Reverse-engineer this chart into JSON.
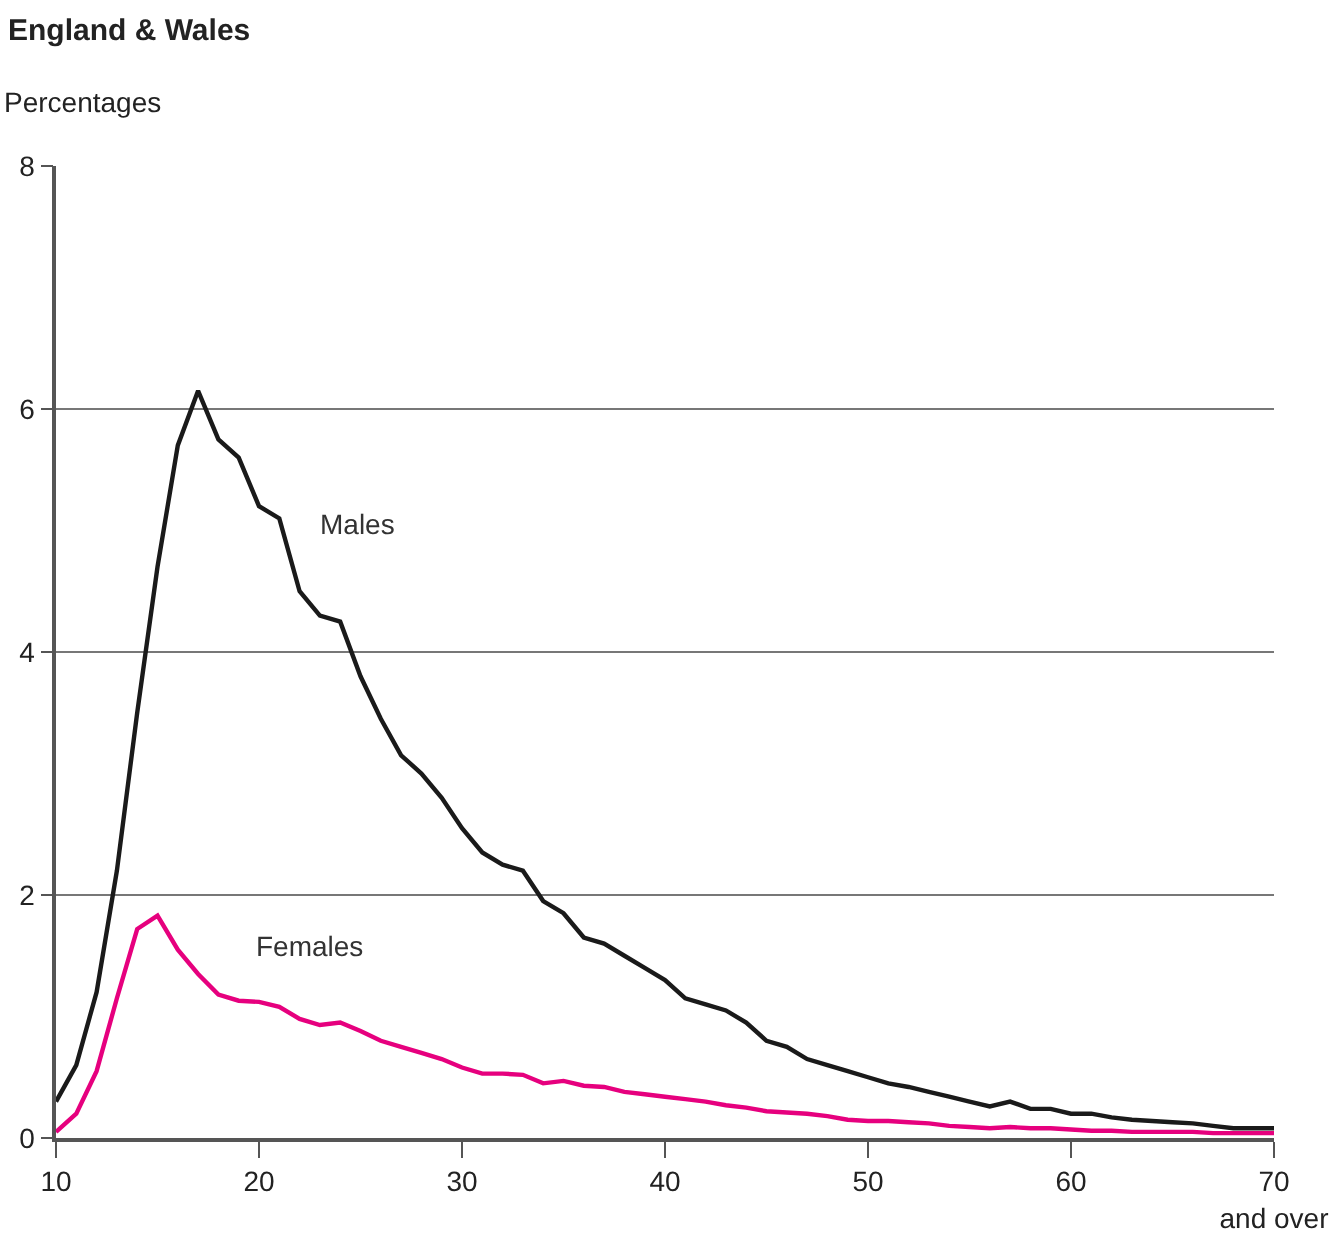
{
  "chart_data": {
    "type": "line",
    "title": "England & Wales",
    "ylabel": "Percentages",
    "x": [
      10,
      11,
      12,
      13,
      14,
      15,
      16,
      17,
      18,
      19,
      20,
      21,
      22,
      23,
      24,
      25,
      26,
      27,
      28,
      29,
      30,
      31,
      32,
      33,
      34,
      35,
      36,
      37,
      38,
      39,
      40,
      41,
      42,
      43,
      44,
      45,
      46,
      47,
      48,
      49,
      50,
      51,
      52,
      53,
      54,
      55,
      56,
      57,
      58,
      59,
      60,
      61,
      62,
      63,
      64,
      65,
      66,
      67,
      68,
      69,
      70
    ],
    "series": [
      {
        "name": "Males",
        "color": "#1a1a1a",
        "values": [
          0.3,
          0.6,
          1.2,
          2.2,
          3.5,
          4.7,
          5.7,
          6.15,
          5.75,
          5.6,
          5.2,
          5.1,
          4.5,
          4.3,
          4.25,
          3.8,
          3.45,
          3.15,
          3.0,
          2.8,
          2.55,
          2.35,
          2.25,
          2.2,
          1.95,
          1.85,
          1.65,
          1.6,
          1.5,
          1.4,
          1.3,
          1.15,
          1.1,
          1.05,
          0.95,
          0.8,
          0.75,
          0.65,
          0.6,
          0.55,
          0.5,
          0.45,
          0.42,
          0.38,
          0.34,
          0.3,
          0.26,
          0.3,
          0.24,
          0.24,
          0.2,
          0.2,
          0.17,
          0.15,
          0.14,
          0.13,
          0.12,
          0.1,
          0.08,
          0.08,
          0.08
        ]
      },
      {
        "name": "Females",
        "color": "#e6007e",
        "values": [
          0.05,
          0.2,
          0.55,
          1.15,
          1.72,
          1.83,
          1.55,
          1.35,
          1.18,
          1.13,
          1.12,
          1.08,
          0.98,
          0.93,
          0.95,
          0.88,
          0.8,
          0.75,
          0.7,
          0.65,
          0.58,
          0.53,
          0.53,
          0.52,
          0.45,
          0.47,
          0.43,
          0.42,
          0.38,
          0.36,
          0.34,
          0.32,
          0.3,
          0.27,
          0.25,
          0.22,
          0.21,
          0.2,
          0.18,
          0.15,
          0.14,
          0.14,
          0.13,
          0.12,
          0.1,
          0.09,
          0.08,
          0.09,
          0.08,
          0.08,
          0.07,
          0.06,
          0.06,
          0.05,
          0.05,
          0.05,
          0.05,
          0.04,
          0.04,
          0.04,
          0.04
        ]
      }
    ],
    "xlim": [
      10,
      70
    ],
    "xticks": [
      10,
      20,
      30,
      40,
      50,
      60,
      {
        "value": 70,
        "label": "70\nand over"
      }
    ],
    "ylim": [
      0,
      8
    ],
    "yticks": [
      0,
      2,
      4,
      6,
      8
    ],
    "grid": "y",
    "legend": false,
    "line_style": "solid",
    "marker": "none"
  }
}
